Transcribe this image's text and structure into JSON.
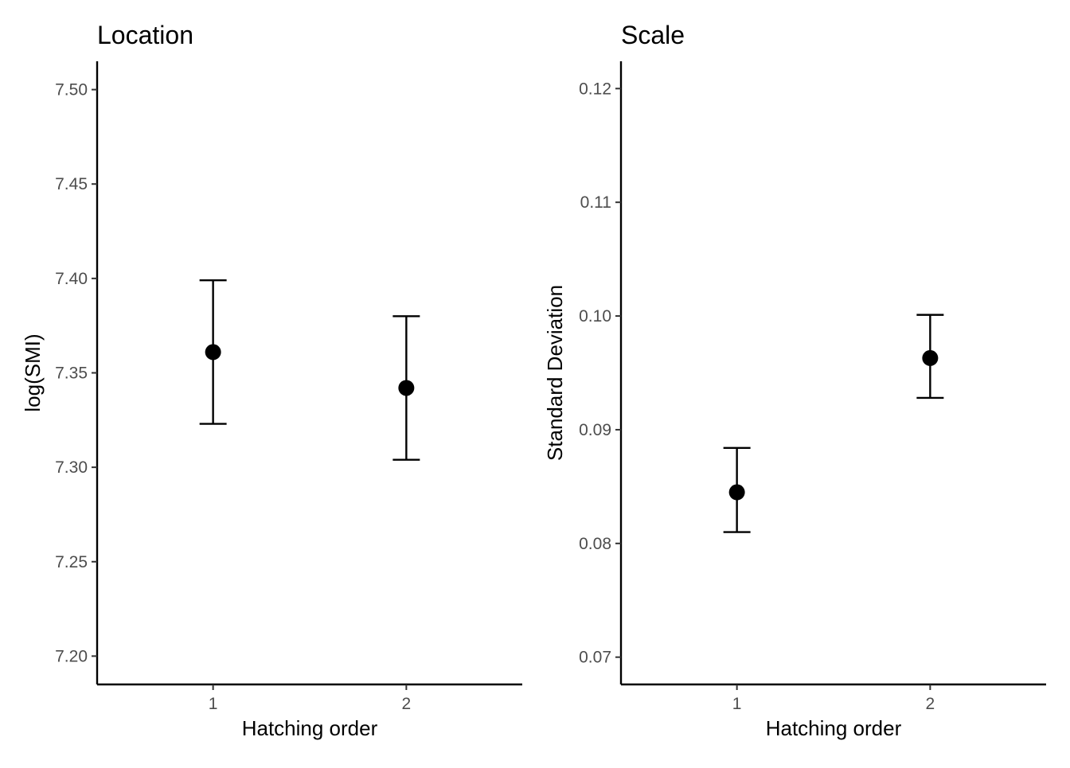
{
  "chart_data": [
    {
      "type": "scatter",
      "title": "Location",
      "xlabel": "Hatching order",
      "ylabel": "log(SMI)",
      "categories": [
        "1",
        "2"
      ],
      "points": [
        {
          "x": "1",
          "y": 7.361,
          "lower": 7.323,
          "upper": 7.399
        },
        {
          "x": "2",
          "y": 7.342,
          "lower": 7.304,
          "upper": 7.38
        }
      ],
      "y_ticks": [
        7.2,
        7.25,
        7.3,
        7.35,
        7.4,
        7.45,
        7.5
      ],
      "y_tick_labels": [
        "7.20",
        "7.25",
        "7.30",
        "7.35",
        "7.40",
        "7.45",
        "7.50"
      ],
      "ylim": [
        7.185,
        7.515
      ],
      "grid": false,
      "color": "#000000"
    },
    {
      "type": "scatter",
      "title": "Scale",
      "xlabel": "Hatching order",
      "ylabel": "Standard Deviation",
      "categories": [
        "1",
        "2"
      ],
      "points": [
        {
          "x": "1",
          "y": 0.0845,
          "lower": 0.081,
          "upper": 0.0884
        },
        {
          "x": "2",
          "y": 0.0963,
          "lower": 0.0928,
          "upper": 0.1001
        }
      ],
      "y_ticks": [
        0.07,
        0.08,
        0.09,
        0.1,
        0.11,
        0.12
      ],
      "y_tick_labels": [
        "0.07",
        "0.08",
        "0.09",
        "0.10",
        "0.11",
        "0.12"
      ],
      "ylim": [
        0.0676,
        0.1224
      ],
      "grid": false,
      "color": "#000000"
    }
  ]
}
